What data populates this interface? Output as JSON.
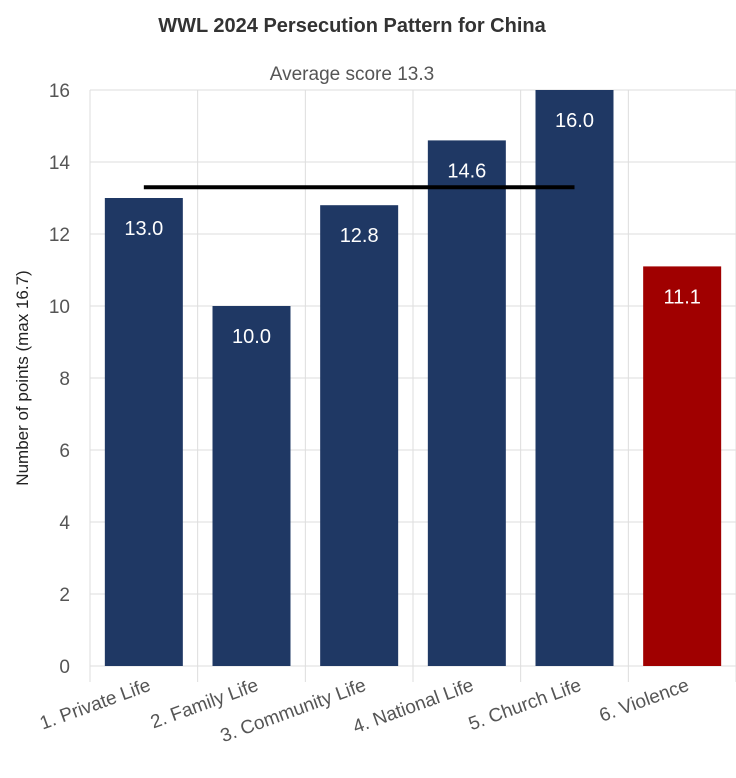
{
  "chart_data": {
    "type": "bar",
    "title": "WWL 2024 Persecution Pattern for China",
    "subtitle": "Average score 13.3",
    "ylabel": "Number of points (max 16.7)",
    "xlabel": "",
    "ylim": [
      0,
      16
    ],
    "yticks": [
      0,
      2,
      4,
      6,
      8,
      10,
      12,
      14,
      16
    ],
    "grid": true,
    "categories": [
      "1. Private Life",
      "2. Family Life",
      "3. Community Life",
      "4. National Life",
      "5. Church Life",
      "6. Violence"
    ],
    "values": [
      13.0,
      10.0,
      12.8,
      14.6,
      16.0,
      11.1
    ],
    "value_labels": [
      "13.0",
      "10.0",
      "12.8",
      "14.6",
      "16.0",
      "11.1"
    ],
    "average": 13.3,
    "colors": {
      "bar": "#1f3864",
      "violence_bar": "#a00000",
      "average_line": "#000000",
      "grid": "#dddddd"
    }
  }
}
